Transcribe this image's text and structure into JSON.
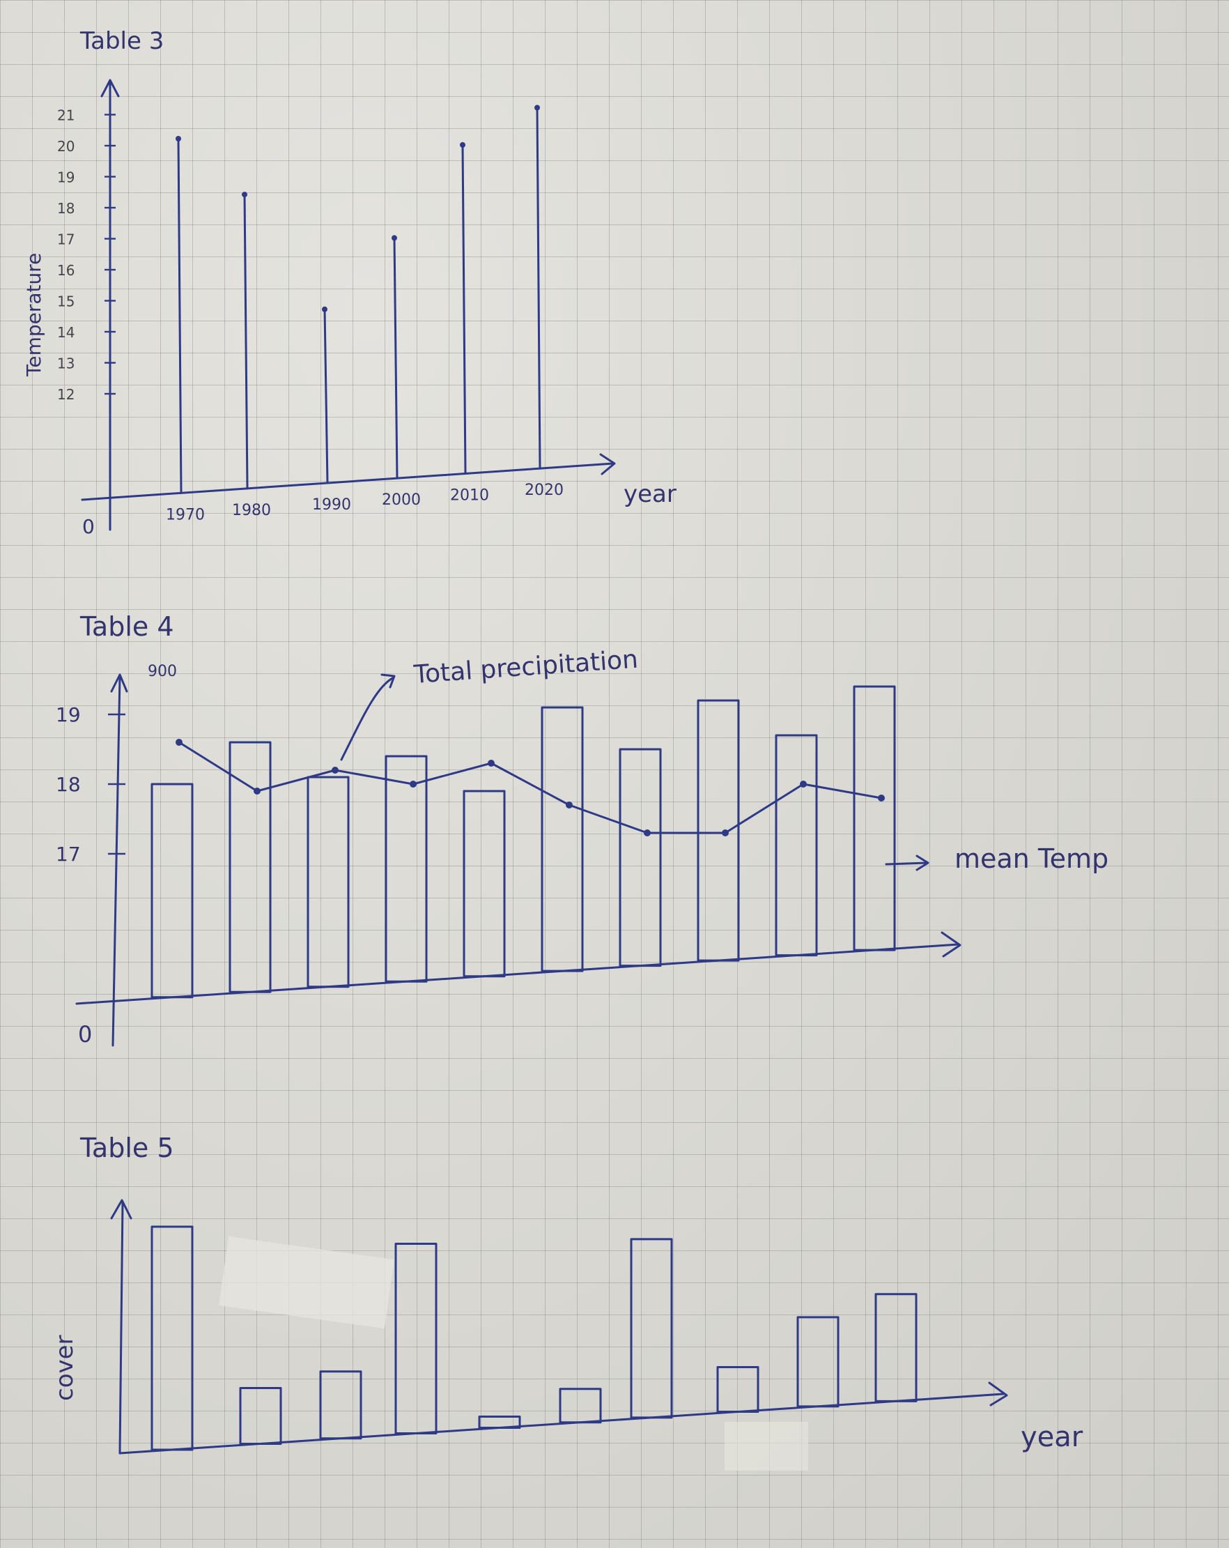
{
  "chart_data": [
    {
      "type": "bar",
      "title": "Table 3",
      "xlabel": "year",
      "ylabel": "Temperature",
      "origin_label": "0",
      "y_ticks": [
        "12",
        "13",
        "14",
        "15",
        "16",
        "17",
        "18",
        "19",
        "20",
        "21"
      ],
      "categories": [
        "1970",
        "1980",
        "1990",
        "2000",
        "2010",
        "2020"
      ],
      "values": [
        20,
        18.2,
        14.5,
        16.8,
        19.8,
        21
      ],
      "ylim": [
        11,
        21.5
      ]
    },
    {
      "type": "bar",
      "title": "Table 4",
      "origin_label": "0",
      "y_ticks": [
        "17",
        "18",
        "19"
      ],
      "secondary_tick": "900",
      "bar_label": "mean Temp",
      "line_label": "Total precipitation",
      "bar_values": [
        18,
        18.6,
        18.1,
        18.4,
        17.9,
        19.1,
        18.5,
        19.2,
        18.7,
        19.4
      ],
      "line_values": [
        18.9,
        18.2,
        18.5,
        18.3,
        18.6,
        18.0,
        17.6,
        17.6,
        18.3,
        18.1
      ],
      "ylim": [
        16,
        19.5
      ]
    },
    {
      "type": "bar",
      "title": "Table 5",
      "xlabel": "year",
      "ylabel": "cover",
      "values": [
        10,
        2.5,
        3,
        8.5,
        0.5,
        1.5,
        8,
        2,
        4,
        4.8
      ],
      "ylim": [
        0,
        11
      ]
    }
  ]
}
